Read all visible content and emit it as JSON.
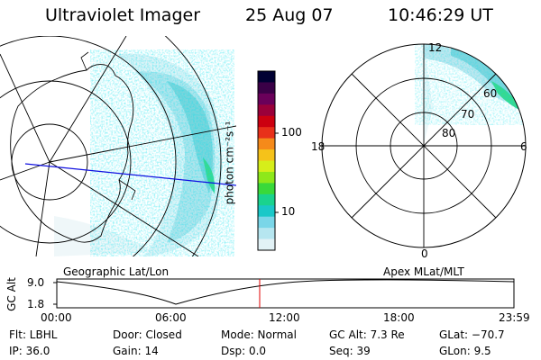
{
  "header": {
    "instrument": "Ultraviolet Imager",
    "date": "25 Aug 07",
    "time": "10:46:29 UT"
  },
  "colorbar": {
    "unit": "photon cm⁻²s⁻¹",
    "ticks": [
      "100",
      "10"
    ],
    "colors": [
      "#000033",
      "#3a0047",
      "#6a005a",
      "#9a003a",
      "#cc0010",
      "#e8301a",
      "#f58a1a",
      "#f5c21a",
      "#d6ee1a",
      "#8ee81a",
      "#39d93a",
      "#1ad38e",
      "#1ac8c8",
      "#7ad6e8",
      "#b6e6f0",
      "#e2f2f6"
    ]
  },
  "left_panel": {
    "caption": "Geographic Lat/Lon"
  },
  "right_panel": {
    "caption": "Apex MLat/MLT",
    "mlt_labels": {
      "top": "12",
      "left": "18",
      "right": "6",
      "bottom": "0"
    },
    "lat_labels": [
      "60",
      "70",
      "80"
    ]
  },
  "timeline": {
    "ylabel": "GC Alt",
    "yticks": [
      "9.0",
      "1.8"
    ],
    "xticks": [
      "00:00",
      "06:00",
      "12:00",
      "18:00",
      "23:59"
    ]
  },
  "status": {
    "flt": "Flt: LBHL",
    "door": "Door: Closed",
    "mode": "Mode: Normal",
    "gcalt": "GC Alt: 7.3 Re",
    "glat": "GLat: −70.7",
    "ip": "IP: 36.0",
    "gain": "Gain: 14",
    "dsp": "Dsp:     0.0",
    "seq": "Seq: 39",
    "glon": "GLon:   9.5"
  }
}
